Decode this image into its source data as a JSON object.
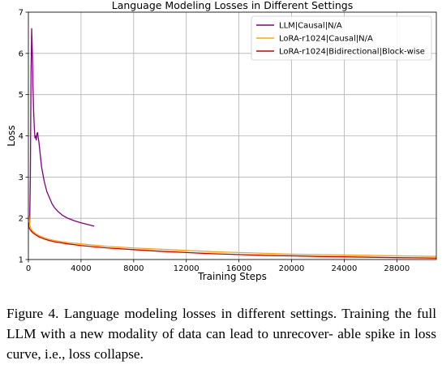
{
  "chart_data": {
    "type": "line",
    "title": "Language Modeling Losses in Different Settings",
    "xlabel": "Training Steps",
    "ylabel": "Loss",
    "xlim": [
      0,
      31000
    ],
    "ylim": [
      1,
      7
    ],
    "xticks": [
      0,
      4000,
      8000,
      12000,
      16000,
      20000,
      24000,
      28000
    ],
    "xtick_labels": [
      "0",
      "4000",
      "8000",
      "12000",
      "16000",
      "20000",
      "24000",
      "28000"
    ],
    "yticks": [
      1,
      2,
      3,
      4,
      5,
      6,
      7
    ],
    "ytick_labels": [
      "1",
      "2",
      "3",
      "4",
      "5",
      "6",
      "7"
    ],
    "grid": true,
    "legend_position": "top-right",
    "series": [
      {
        "name": "LLM|Causal|N/A",
        "color": "#800080",
        "x": [
          0,
          50,
          100,
          150,
          200,
          250,
          300,
          350,
          400,
          450,
          500,
          550,
          600,
          650,
          700,
          750,
          800,
          900,
          1000,
          1200,
          1400,
          1600,
          1800,
          2000,
          2300,
          2600,
          3000,
          3500,
          4000,
          4500,
          5000
        ],
        "y": [
          1.9,
          1.85,
          1.9,
          3.0,
          5.5,
          6.6,
          6.0,
          5.2,
          4.6,
          4.2,
          3.95,
          4.0,
          3.9,
          4.05,
          4.08,
          3.95,
          3.85,
          3.55,
          3.25,
          2.9,
          2.65,
          2.5,
          2.35,
          2.25,
          2.15,
          2.07,
          2.0,
          1.94,
          1.89,
          1.85,
          1.81
        ]
      },
      {
        "name": "LoRA-r1024|Causal|N/A",
        "color": "#ffa500",
        "x": [
          0,
          50,
          100,
          150,
          200,
          300,
          500,
          800,
          1200,
          1600,
          2000,
          3000,
          4000,
          5000,
          6000,
          8000,
          10000,
          12000,
          14000,
          16000,
          18000,
          20000,
          22000,
          24000,
          26000,
          28000,
          30000,
          31000
        ],
        "y": [
          1.95,
          2.05,
          1.85,
          1.8,
          1.75,
          1.7,
          1.64,
          1.58,
          1.53,
          1.49,
          1.46,
          1.41,
          1.38,
          1.35,
          1.32,
          1.28,
          1.25,
          1.22,
          1.19,
          1.17,
          1.15,
          1.13,
          1.12,
          1.11,
          1.1,
          1.09,
          1.08,
          1.075
        ]
      },
      {
        "name": "LoRA-r1024|Bidirectional|Block-wise",
        "color": "#cc0000",
        "x": [
          0,
          50,
          100,
          200,
          300,
          500,
          800,
          1200,
          1600,
          2000,
          3000,
          4000,
          5000,
          6000,
          8000,
          10000,
          12000,
          14000,
          16000,
          18000,
          20000,
          22000,
          24000,
          26000,
          28000,
          30000,
          31000
        ],
        "y": [
          1.85,
          1.78,
          1.74,
          1.7,
          1.66,
          1.61,
          1.55,
          1.5,
          1.46,
          1.43,
          1.38,
          1.34,
          1.31,
          1.28,
          1.24,
          1.2,
          1.17,
          1.14,
          1.12,
          1.1,
          1.09,
          1.075,
          1.065,
          1.055,
          1.045,
          1.04,
          1.035
        ]
      }
    ]
  },
  "caption": {
    "line1": "Figure 4. Language modeling losses in different settings. Training",
    "line2": "the full LLM with a new modality of data can lead to unrecover-",
    "line3": "able spike in loss curve, i.e., loss collapse."
  }
}
